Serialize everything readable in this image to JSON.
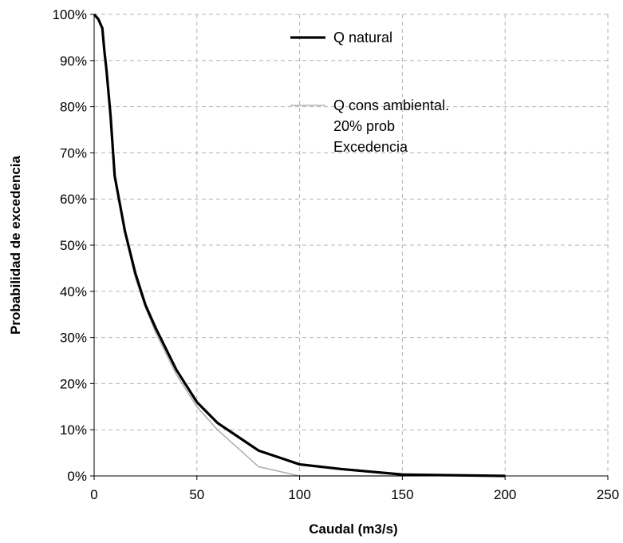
{
  "chart_data": {
    "type": "line",
    "xlabel": "Caudal (m3/s)",
    "ylabel": "Probabilidad de excedencia",
    "xlim": [
      0,
      250
    ],
    "ylim": [
      0,
      100
    ],
    "x_ticks": [
      "0",
      "50",
      "100",
      "150",
      "200",
      "250"
    ],
    "y_ticks": [
      "0%",
      "10%",
      "20%",
      "30%",
      "40%",
      "50%",
      "60%",
      "70%",
      "80%",
      "90%",
      "100%"
    ],
    "grid": true,
    "legend_position": "top-right",
    "legend": [
      {
        "lines": [
          "Q natural"
        ],
        "color": "#000000"
      },
      {
        "lines": [
          "Q cons ambiental.",
          "20% prob",
          "Excedencia"
        ],
        "color": "#b0b0b0"
      }
    ],
    "series": [
      {
        "name": "Q natural",
        "color": "#000000",
        "x": [
          0,
          1,
          2,
          3,
          4,
          5,
          6,
          8,
          10,
          15,
          20,
          25,
          30,
          40,
          50,
          60,
          70,
          80,
          90,
          100,
          120,
          150,
          200
        ],
        "y": [
          100,
          99.5,
          99,
          98,
          97,
          92,
          88,
          78,
          65,
          53,
          44,
          37,
          32,
          23,
          16,
          11.5,
          8.5,
          5.5,
          4,
          2.5,
          1.5,
          0.3,
          0
        ]
      },
      {
        "name": "Q cons ambiental. 20% prob Excedencia",
        "color": "#b0b0b0",
        "x": [
          0,
          1,
          2,
          3,
          4,
          5,
          6,
          8,
          10,
          15,
          20,
          25,
          30,
          40,
          50,
          60,
          70,
          80,
          90,
          100,
          150,
          200
        ],
        "y": [
          100,
          99.5,
          99,
          98,
          97,
          92,
          88,
          78,
          65,
          52.5,
          43,
          36.5,
          31,
          22,
          15,
          10,
          6,
          2,
          1,
          0,
          0,
          0
        ]
      }
    ]
  }
}
